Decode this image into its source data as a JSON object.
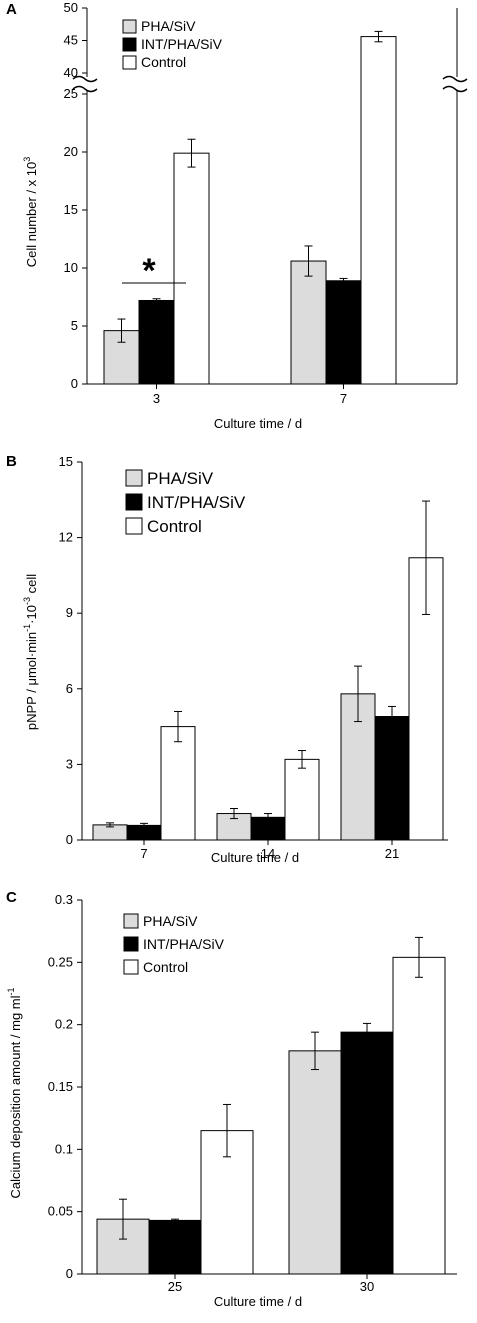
{
  "colors": {
    "PHA/SiV": "#dcdcdc",
    "INT/PHA/SiV": "#000000",
    "Control": "#ffffff"
  },
  "chart_data": [
    {
      "panel": "A",
      "type": "bar",
      "xlabel": "Culture time / d",
      "ylabel": "Cell number / x 10",
      "ylabel_superscript": "3",
      "categories": [
        "3",
        "7"
      ],
      "axis_break": {
        "lower_range": [
          0,
          25
        ],
        "upper_range": [
          40,
          50
        ]
      },
      "yticks_lower": [
        0,
        5,
        10,
        15,
        20,
        25
      ],
      "yticks_upper": [
        40,
        45,
        50
      ],
      "series": [
        {
          "name": "PHA/SiV",
          "values": [
            4.6,
            10.6
          ],
          "errors": [
            1.0,
            1.3
          ]
        },
        {
          "name": "INT/PHA/SiV",
          "values": [
            7.2,
            8.9
          ],
          "errors": [
            0.15,
            0.2
          ]
        },
        {
          "name": "Control",
          "values": [
            19.9,
            45.6
          ],
          "errors": [
            1.2,
            0.8
          ]
        }
      ],
      "annotation": "*",
      "legend_position": "top-left"
    },
    {
      "panel": "B",
      "type": "bar",
      "xlabel": "Culture time / d",
      "ylabel": "pNPP / μmol·min·10 cell",
      "ylim": [
        0,
        15
      ],
      "yticks": [
        0,
        3,
        6,
        9,
        12,
        15
      ],
      "categories": [
        "7",
        "14",
        "21"
      ],
      "series": [
        {
          "name": "PHA/SiV",
          "values": [
            0.6,
            1.05,
            5.8
          ],
          "errors": [
            0.08,
            0.2,
            1.1
          ]
        },
        {
          "name": "INT/PHA/SiV",
          "values": [
            0.58,
            0.9,
            4.9
          ],
          "errors": [
            0.08,
            0.15,
            0.4
          ]
        },
        {
          "name": "Control",
          "values": [
            4.5,
            3.2,
            11.2
          ],
          "errors": [
            0.6,
            0.35,
            2.25
          ]
        }
      ],
      "legend_position": "top-left"
    },
    {
      "panel": "C",
      "type": "bar",
      "xlabel": "Culture time / d",
      "ylabel": "Calcium deposition amount / mg ml",
      "ylim": [
        0,
        0.3
      ],
      "yticks": [
        0,
        0.05,
        0.1,
        0.15,
        0.2,
        0.25,
        0.3
      ],
      "categories": [
        "25",
        "30"
      ],
      "series": [
        {
          "name": "PHA/SiV",
          "values": [
            0.044,
            0.179
          ],
          "errors": [
            0.016,
            0.015
          ]
        },
        {
          "name": "INT/PHA/SiV",
          "values": [
            0.043,
            0.194
          ],
          "errors": [
            0.001,
            0.007
          ]
        },
        {
          "name": "Control",
          "values": [
            0.115,
            0.254
          ],
          "errors": [
            0.021,
            0.016
          ]
        }
      ],
      "legend_position": "top-left"
    }
  ]
}
